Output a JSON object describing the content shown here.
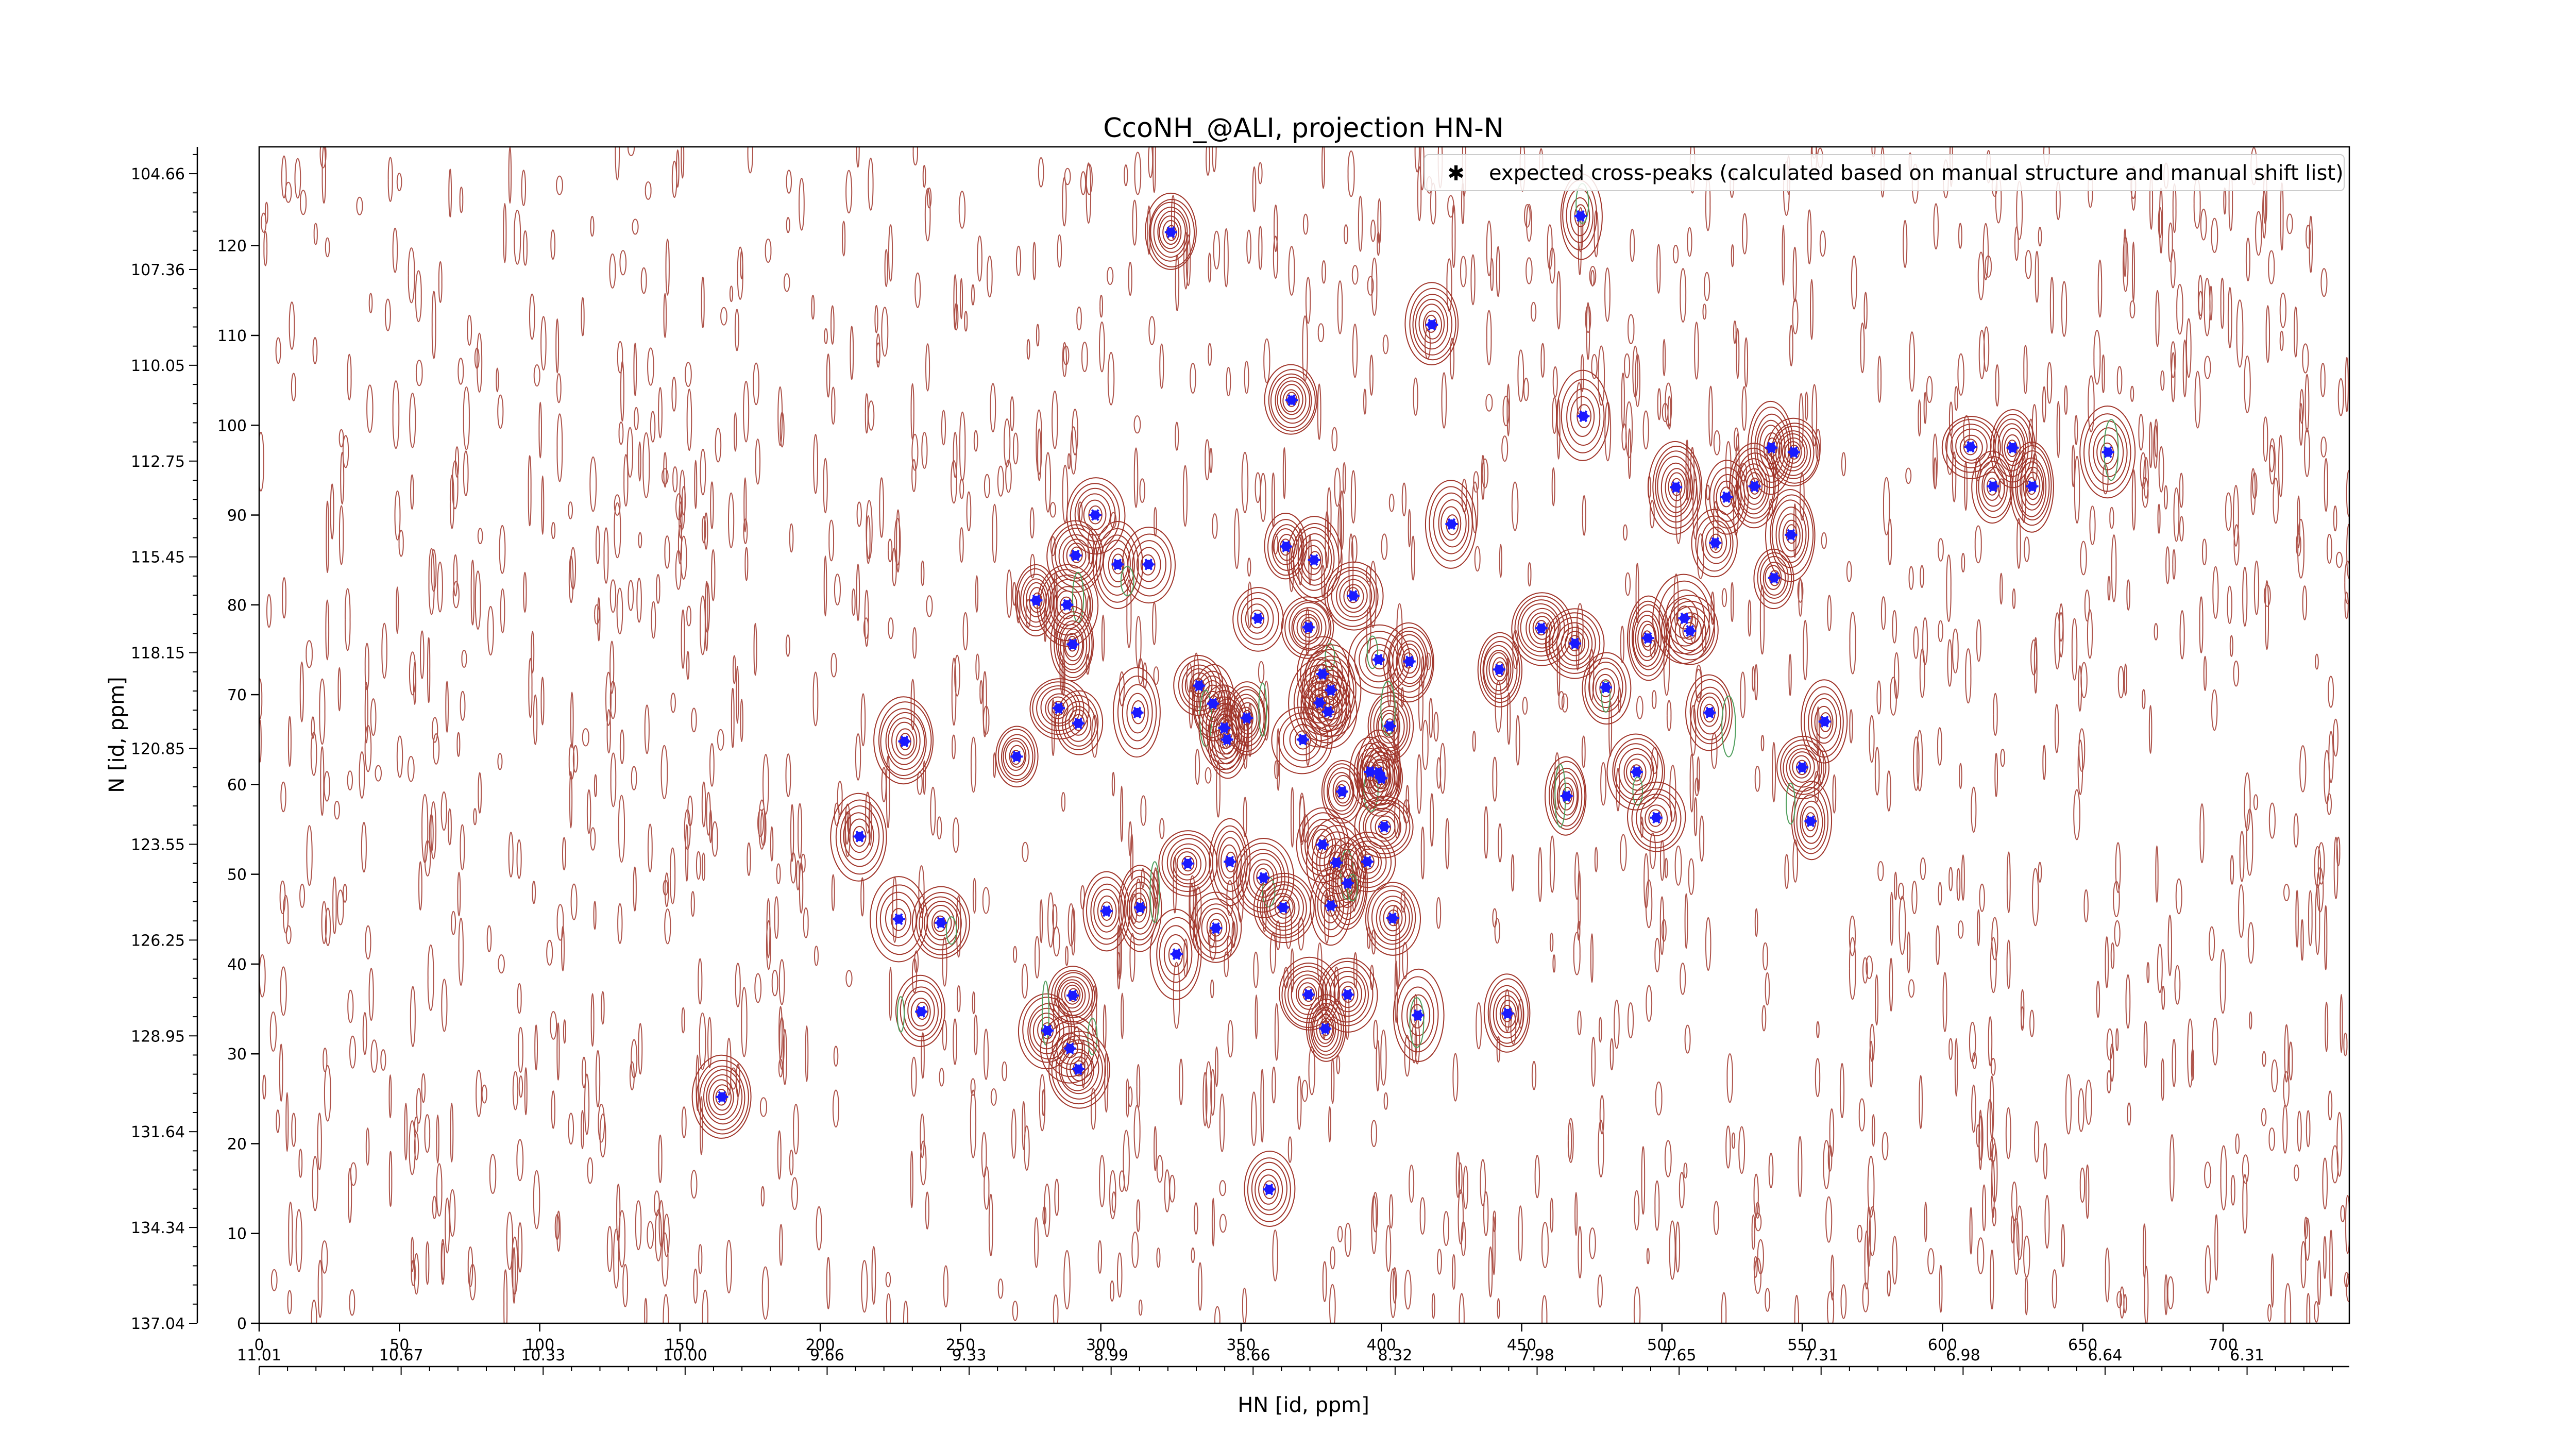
{
  "chart_data": {
    "type": "scatter",
    "title": "CcoNH_@ALI, projection HN-N",
    "xlabel": "HN [id, ppm]",
    "ylabel": "N [id, ppm]",
    "x_index_range": [
      0,
      745
    ],
    "y_index_range": [
      0,
      131
    ],
    "x_index_ticks": [
      "0",
      "50",
      "100",
      "150",
      "200",
      "250",
      "300",
      "350",
      "400",
      "450",
      "500",
      "550",
      "600",
      "650",
      "700"
    ],
    "y_index_ticks": [
      "0",
      "10",
      "20",
      "30",
      "40",
      "50",
      "60",
      "70",
      "80",
      "90",
      "100",
      "110",
      "120"
    ],
    "hn_ppm_ticks": [
      "11.01",
      "10.67",
      "10.33",
      "10.00",
      "9.66",
      "9.33",
      "8.99",
      "8.66",
      "8.32",
      "7.98",
      "7.65",
      "7.31",
      "6.98",
      "6.64",
      "6.31"
    ],
    "n_ppm_ticks": [
      "137.04",
      "134.34",
      "131.64",
      "128.95",
      "126.25",
      "123.55",
      "120.85",
      "118.15",
      "115.45",
      "112.75",
      "110.05",
      "107.36",
      "104.66"
    ],
    "legend": {
      "position": "top-right",
      "entries": [
        "expected cross-peaks (calculated based on manual structure and manual shift list)"
      ]
    },
    "colors": {
      "positive_contour": "#a0352a",
      "negative_contour": "#4e9e5c",
      "marker": "#1a1aff"
    },
    "series": [
      {
        "name": "expected cross-peaks (calculated based on manual structure and manual shift list)",
        "points": [
          [
            325,
            121.5
          ],
          [
            471,
            123.3
          ],
          [
            418,
            111.2
          ],
          [
            368,
            102.8
          ],
          [
            472,
            101.0
          ],
          [
            610,
            97.6
          ],
          [
            625,
            97.5
          ],
          [
            618,
            93.2
          ],
          [
            632,
            93.2
          ],
          [
            659,
            97.0
          ],
          [
            539,
            97.5
          ],
          [
            547,
            97.0
          ],
          [
            505,
            93.1
          ],
          [
            523,
            92.0
          ],
          [
            533,
            93.2
          ],
          [
            546,
            87.8
          ],
          [
            519,
            86.9
          ],
          [
            540,
            83.0
          ],
          [
            425,
            89.0
          ],
          [
            298,
            90.0
          ],
          [
            291,
            85.5
          ],
          [
            306,
            84.5
          ],
          [
            317,
            84.5
          ],
          [
            366,
            86.5
          ],
          [
            376,
            85.0
          ],
          [
            390,
            81.0
          ],
          [
            277,
            80.5
          ],
          [
            288,
            80.0
          ],
          [
            356,
            78.5
          ],
          [
            374,
            77.5
          ],
          [
            290,
            75.6
          ],
          [
            469,
            75.7
          ],
          [
            508,
            78.5
          ],
          [
            510,
            77.1
          ],
          [
            495,
            76.3
          ],
          [
            457,
            77.4
          ],
          [
            399,
            73.9
          ],
          [
            410,
            73.7
          ],
          [
            442,
            72.8
          ],
          [
            480,
            70.8
          ],
          [
            335,
            71.0
          ],
          [
            340,
            69.0
          ],
          [
            379,
            72.3
          ],
          [
            382,
            70.5
          ],
          [
            378,
            69.1
          ],
          [
            285,
            68.5
          ],
          [
            292,
            66.8
          ],
          [
            313,
            68.0
          ],
          [
            344,
            66.3
          ],
          [
            352,
            67.4
          ],
          [
            381,
            68.1
          ],
          [
            345,
            65.0
          ],
          [
            372,
            65.0
          ],
          [
            403,
            66.5
          ],
          [
            517,
            68.0
          ],
          [
            558,
            67.0
          ],
          [
            230,
            64.8
          ],
          [
            270,
            63.1
          ],
          [
            550,
            61.9
          ],
          [
            491,
            61.4
          ],
          [
            396,
            61.4
          ],
          [
            399,
            61.3
          ],
          [
            400,
            60.7
          ],
          [
            386,
            59.2
          ],
          [
            466,
            58.7
          ],
          [
            498,
            56.3
          ],
          [
            553,
            55.9
          ],
          [
            401,
            55.3
          ],
          [
            214,
            54.2
          ],
          [
            379,
            53.3
          ],
          [
            384,
            51.3
          ],
          [
            395,
            51.4
          ],
          [
            331,
            51.2
          ],
          [
            346,
            51.4
          ],
          [
            358,
            49.6
          ],
          [
            388,
            49.0
          ],
          [
            365,
            46.3
          ],
          [
            382,
            46.5
          ],
          [
            302,
            45.9
          ],
          [
            314,
            46.3
          ],
          [
            228,
            45.0
          ],
          [
            243,
            44.6
          ],
          [
            341,
            44.0
          ],
          [
            404,
            45.1
          ],
          [
            327,
            41.1
          ],
          [
            290,
            36.5
          ],
          [
            374,
            36.6
          ],
          [
            388,
            36.6
          ],
          [
            236,
            34.7
          ],
          [
            413,
            34.3
          ],
          [
            445,
            34.5
          ],
          [
            281,
            32.6
          ],
          [
            380,
            32.8
          ],
          [
            289,
            30.6
          ],
          [
            292,
            28.3
          ],
          [
            165,
            25.2
          ],
          [
            360,
            14.9
          ]
        ]
      }
    ]
  }
}
